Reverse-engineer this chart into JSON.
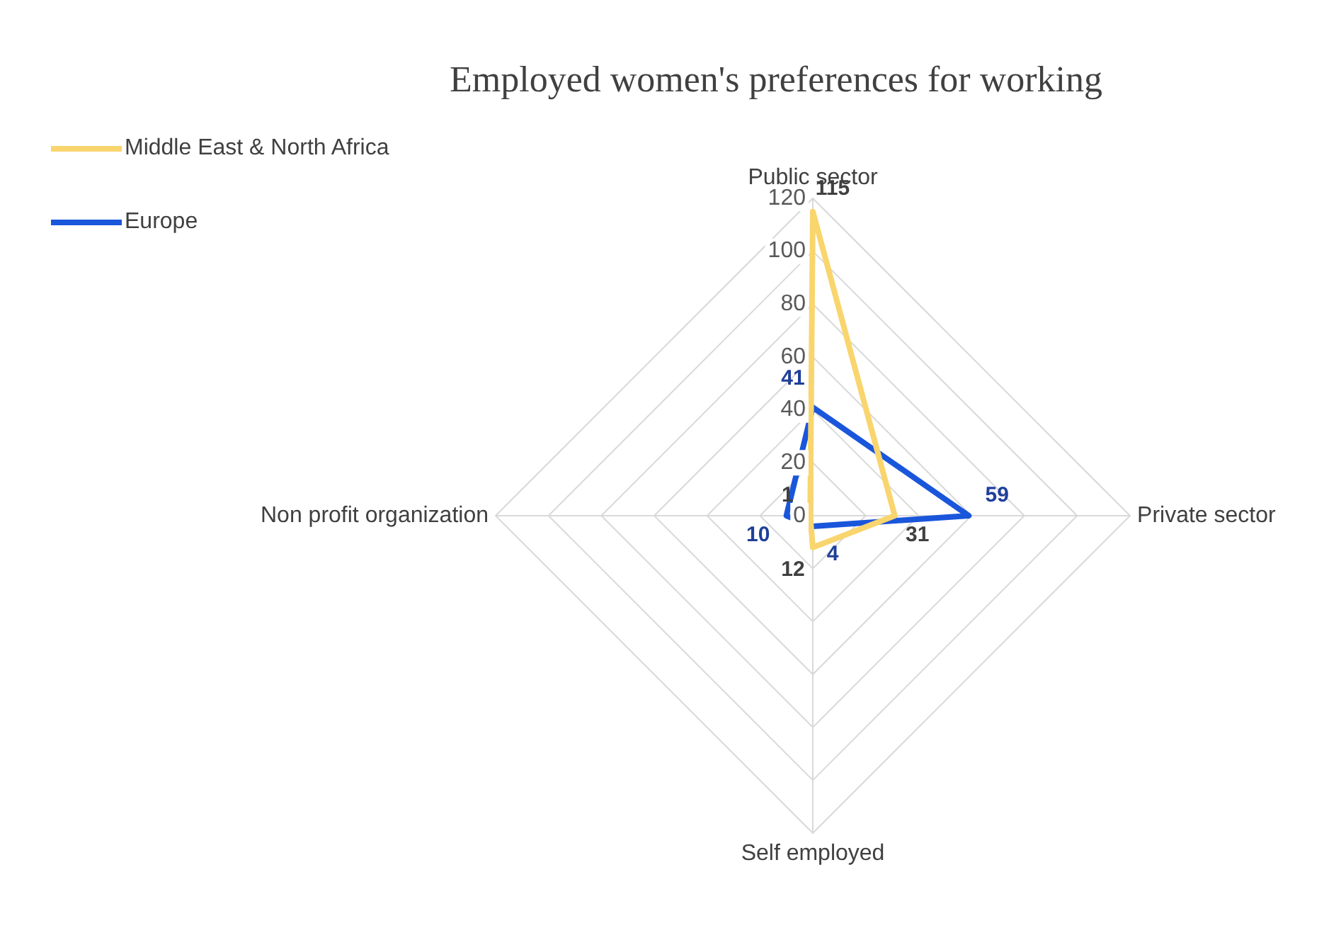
{
  "chart_data": {
    "type": "radar",
    "title": "Employed women's preferences for working",
    "categories": [
      "Public sector",
      "Private sector",
      "Self employed",
      "Non profit organization"
    ],
    "series": [
      {
        "name": "Middle East & North Africa",
        "color": "#f9d56e",
        "values": [
          115,
          31,
          12,
          1
        ]
      },
      {
        "name": "Europe",
        "color": "#1a56db",
        "values": [
          41,
          59,
          4,
          10
        ]
      }
    ],
    "ylim": [
      0,
      120
    ],
    "yticks": [
      0,
      20,
      40,
      60,
      80,
      100,
      120
    ],
    "grid": true,
    "legend": "top left",
    "data_labels": true,
    "marker": "none"
  }
}
